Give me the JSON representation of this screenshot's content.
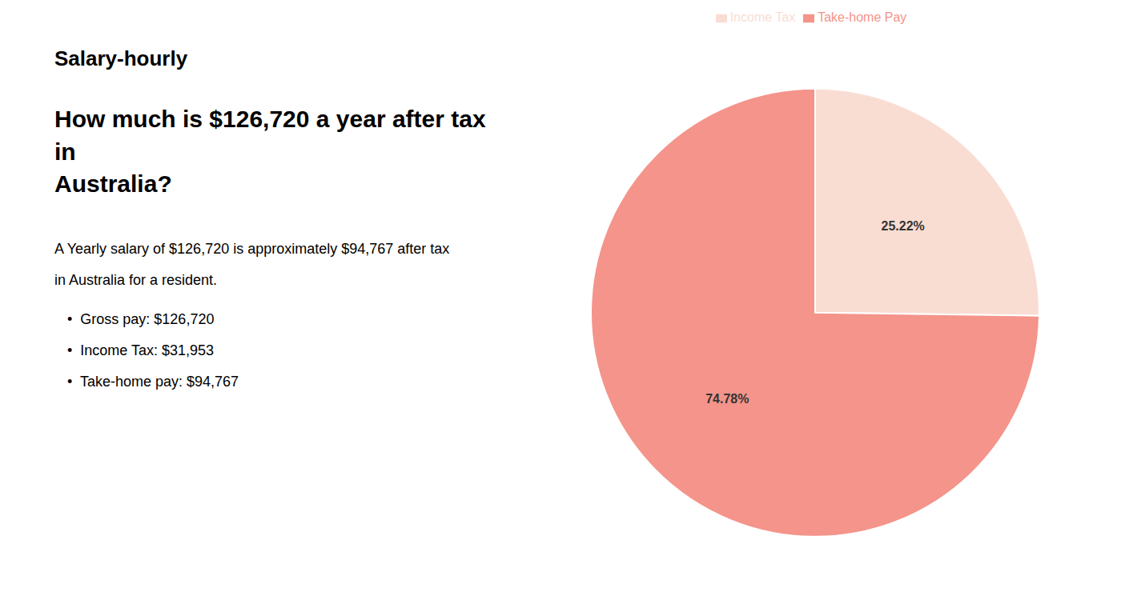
{
  "chart_data": {
    "type": "pie",
    "title": "How much is $126,720 a year after tax in\nAustralia?",
    "categories": [
      "Income Tax",
      "Take-home Pay"
    ],
    "values": [
      25.22,
      74.78
    ],
    "value_labels": [
      "25.22%",
      "74.78%"
    ],
    "colors": [
      "#f9ddd3",
      "#f4948a"
    ],
    "data_labels": true,
    "legend": "top",
    "annotations": [
      "Salary-hourly",
      "A Yearly salary of $126,720 is approximately $94,767 after tax",
      "in Australia for a resident.",
      "•  Gross pay: $126,720",
      "•  Income Tax: $31,953",
      "•  Take-home pay: $94,767"
    ]
  }
}
